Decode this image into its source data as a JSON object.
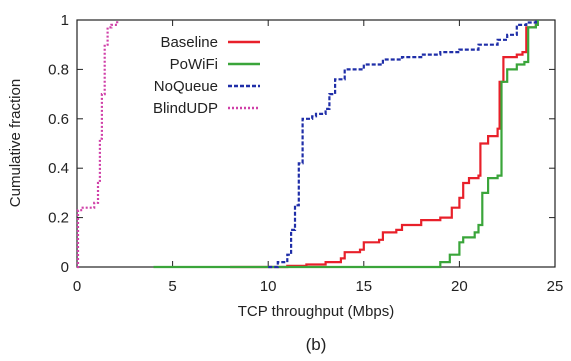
{
  "chart_data": {
    "type": "line",
    "caption": "(b)",
    "xlabel": "TCP throughput (Mbps)",
    "ylabel": "Cumulative fraction",
    "xlim": [
      0,
      25
    ],
    "ylim": [
      0,
      1
    ],
    "xticks": [
      "0",
      "5",
      "10",
      "15",
      "20",
      "25"
    ],
    "yticks": [
      "0",
      "0.2",
      "0.4",
      "0.6",
      "0.8",
      "1"
    ],
    "grid": false,
    "legend_position": "top-right",
    "series": [
      {
        "name": "Baseline",
        "color": "#e8202a",
        "dash": "solid",
        "points": [
          [
            8,
            0
          ],
          [
            10,
            0
          ],
          [
            11,
            0.005
          ],
          [
            12,
            0.01
          ],
          [
            13,
            0.02
          ],
          [
            13.8,
            0.035
          ],
          [
            14,
            0.06
          ],
          [
            14.8,
            0.07
          ],
          [
            15,
            0.1
          ],
          [
            15.8,
            0.11
          ],
          [
            16,
            0.14
          ],
          [
            16.7,
            0.15
          ],
          [
            17,
            0.17
          ],
          [
            18,
            0.19
          ],
          [
            19,
            0.2
          ],
          [
            19.6,
            0.24
          ],
          [
            20,
            0.28
          ],
          [
            20.2,
            0.34
          ],
          [
            20.5,
            0.36
          ],
          [
            21,
            0.37
          ],
          [
            21.1,
            0.5
          ],
          [
            21.5,
            0.53
          ],
          [
            22,
            0.56
          ],
          [
            22.1,
            0.75
          ],
          [
            22.3,
            0.85
          ],
          [
            23,
            0.86
          ],
          [
            23.3,
            0.87
          ],
          [
            23.5,
            0.97
          ],
          [
            24,
            0.98
          ],
          [
            24.1,
            0.99
          ]
        ]
      },
      {
        "name": "PoWiFi",
        "color": "#3aa53a",
        "dash": "solid",
        "points": [
          [
            4,
            0
          ],
          [
            10,
            0
          ],
          [
            15,
            0
          ],
          [
            18.5,
            0
          ],
          [
            19,
            0.02
          ],
          [
            19.5,
            0.05
          ],
          [
            20,
            0.1
          ],
          [
            20.2,
            0.12
          ],
          [
            20.8,
            0.14
          ],
          [
            21,
            0.17
          ],
          [
            21.2,
            0.3
          ],
          [
            21.5,
            0.36
          ],
          [
            22,
            0.37
          ],
          [
            22.2,
            0.75
          ],
          [
            22.5,
            0.8
          ],
          [
            23,
            0.82
          ],
          [
            23.4,
            0.83
          ],
          [
            23.6,
            0.97
          ],
          [
            24,
            0.98
          ],
          [
            24.1,
            1
          ]
        ]
      },
      {
        "name": "NoQueue",
        "color": "#1f2ea8",
        "dash": "4 2",
        "points": [
          [
            10,
            0
          ],
          [
            10.5,
            0.02
          ],
          [
            11,
            0.05
          ],
          [
            11.2,
            0.15
          ],
          [
            11.4,
            0.25
          ],
          [
            11.6,
            0.42
          ],
          [
            11.8,
            0.6
          ],
          [
            12.3,
            0.61
          ],
          [
            12.5,
            0.62
          ],
          [
            13,
            0.64
          ],
          [
            13.2,
            0.7
          ],
          [
            13.5,
            0.76
          ],
          [
            14,
            0.8
          ],
          [
            15,
            0.82
          ],
          [
            16,
            0.84
          ],
          [
            17,
            0.85
          ],
          [
            18,
            0.86
          ],
          [
            19,
            0.87
          ],
          [
            20,
            0.88
          ],
          [
            21,
            0.9
          ],
          [
            22,
            0.92
          ],
          [
            22.5,
            0.94
          ],
          [
            23,
            0.98
          ],
          [
            23.5,
            0.99
          ],
          [
            24,
            1
          ]
        ]
      },
      {
        "name": "BlindUDP",
        "color": "#d040a8",
        "dash": "2 2",
        "points": [
          [
            0,
            0
          ],
          [
            0.05,
            0.23
          ],
          [
            0.3,
            0.24
          ],
          [
            0.9,
            0.26
          ],
          [
            1.1,
            0.34
          ],
          [
            1.2,
            0.52
          ],
          [
            1.3,
            0.7
          ],
          [
            1.45,
            0.9
          ],
          [
            1.6,
            0.97
          ],
          [
            1.8,
            0.98
          ],
          [
            2.1,
            1
          ]
        ]
      }
    ]
  }
}
